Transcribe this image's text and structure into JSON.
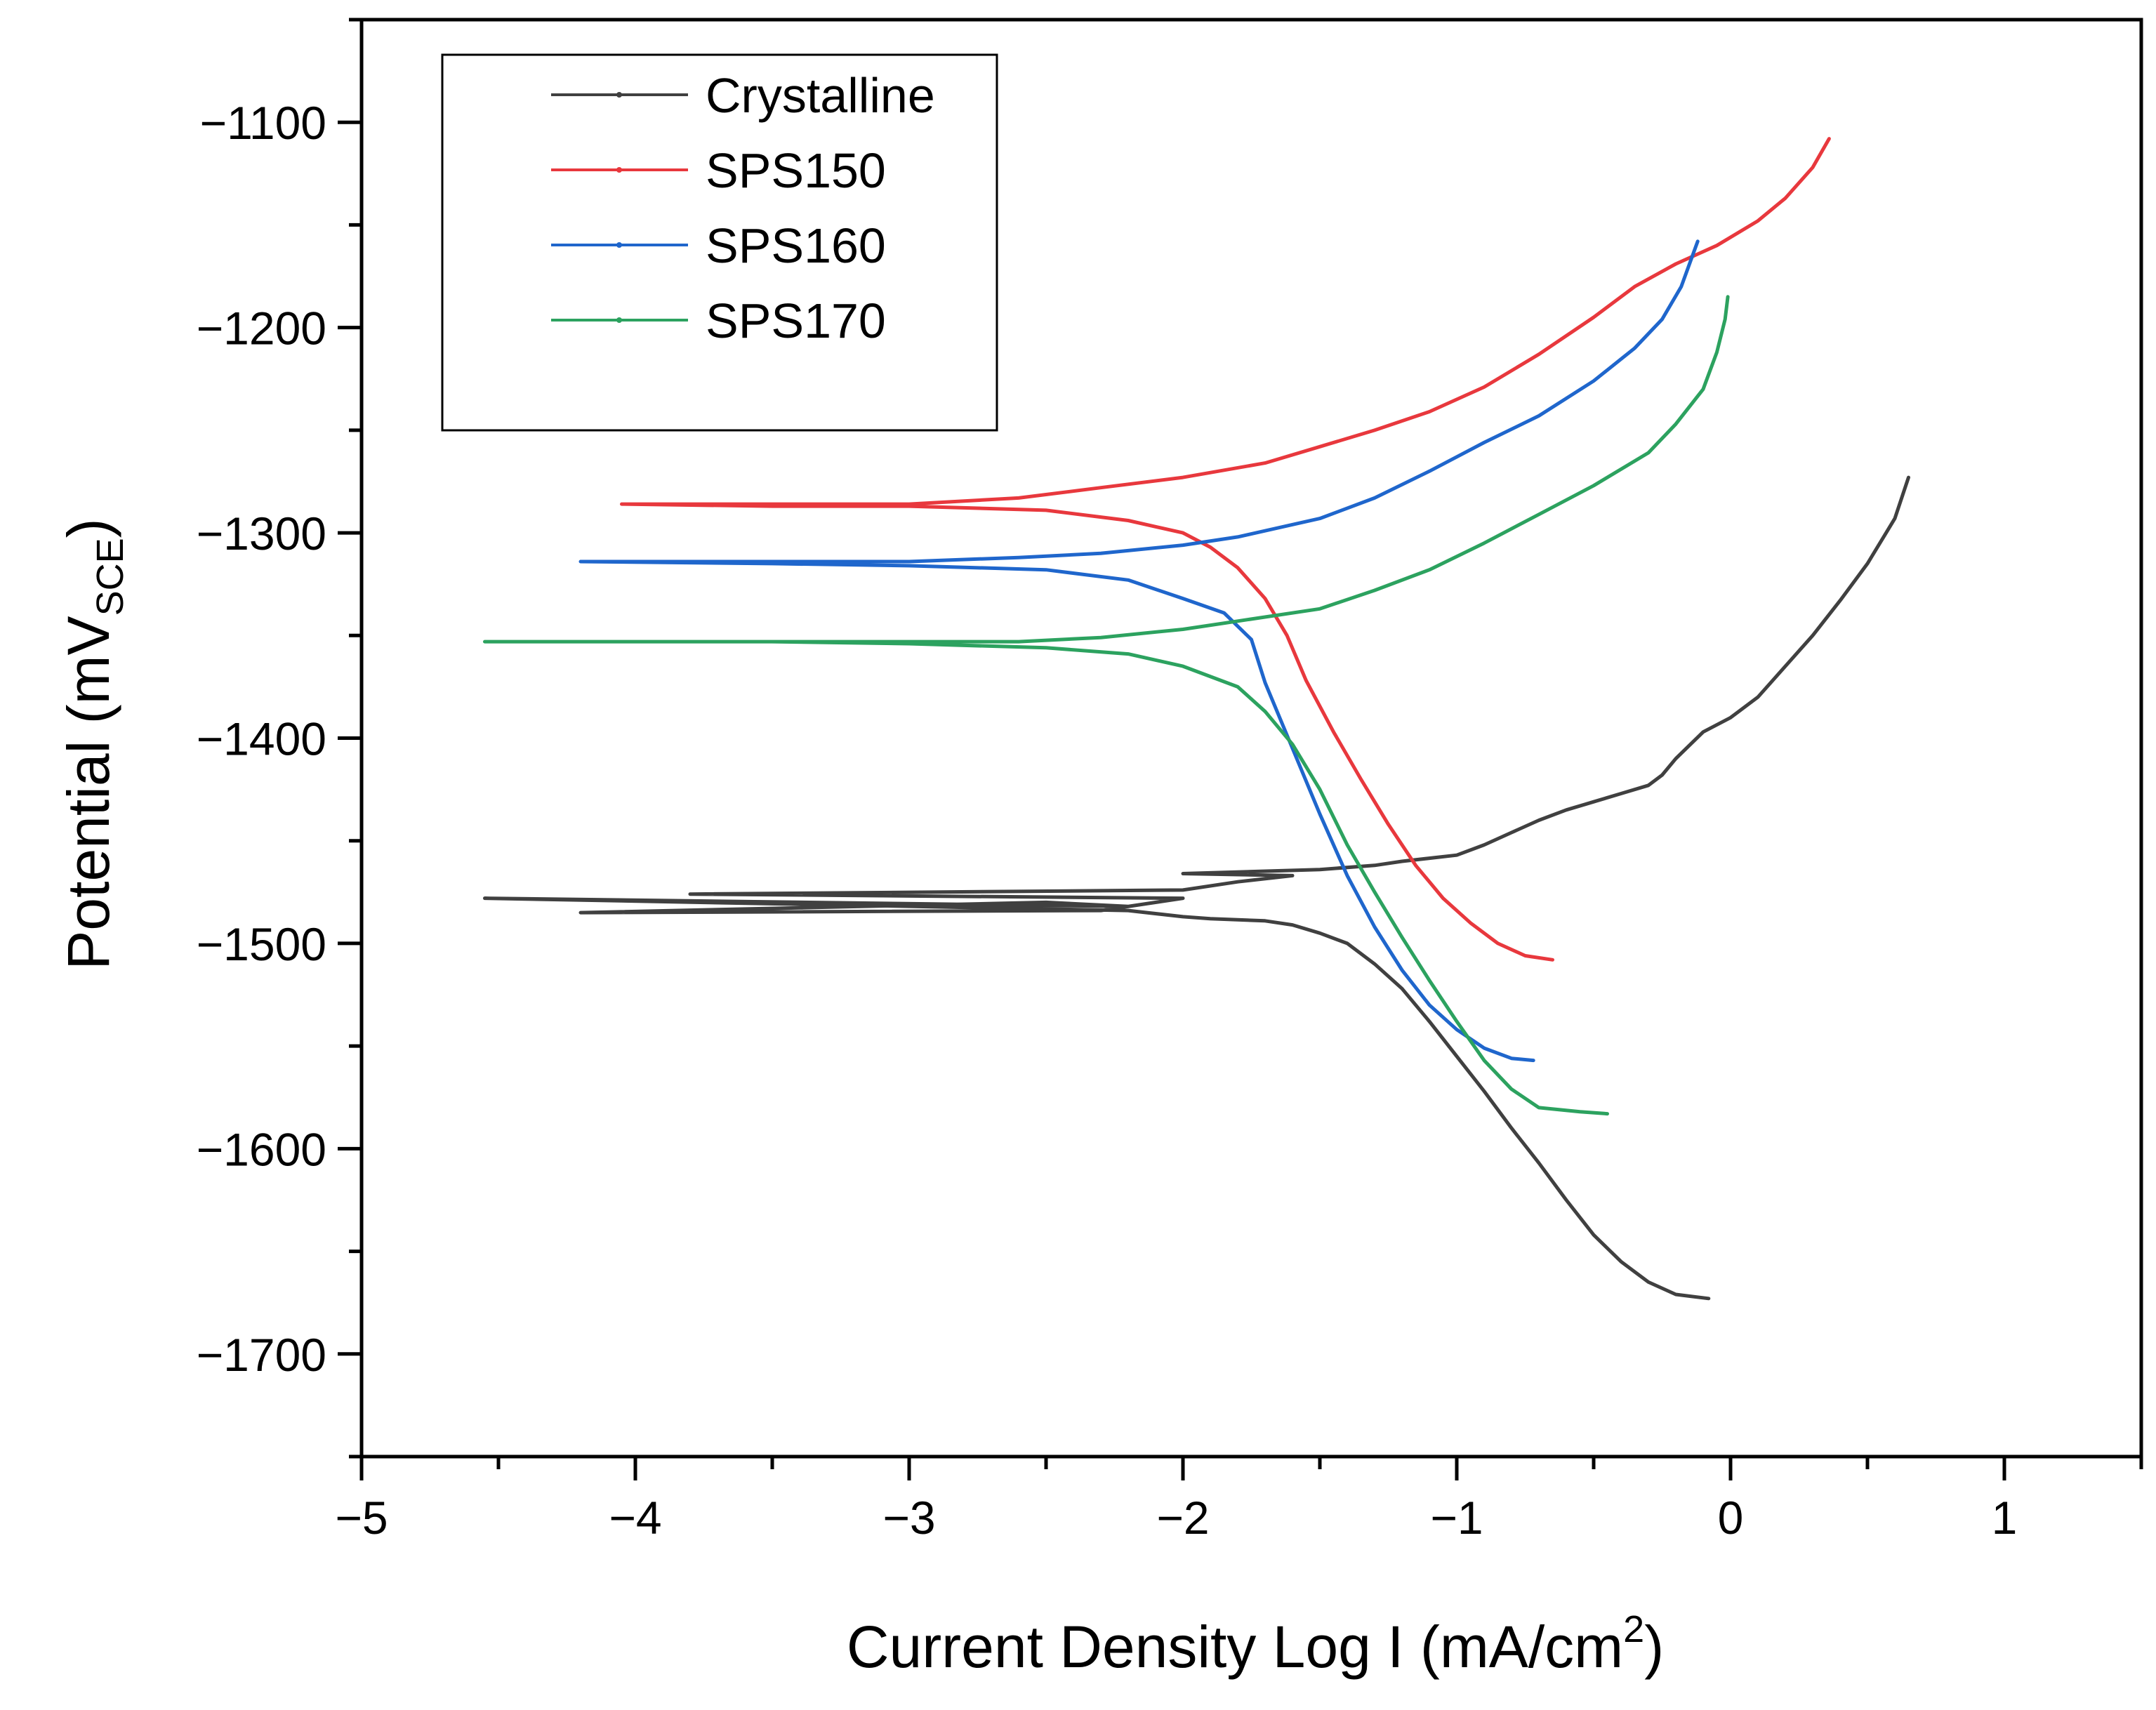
{
  "chart_data": {
    "type": "line",
    "title": "",
    "xlabel_main": "Current Density Log I (mA/cm",
    "xlabel_sup": "2",
    "xlabel_end": ")",
    "ylabel_main": "Potential (mV",
    "ylabel_sub": "SCE",
    "ylabel_end": ")",
    "xlim": [
      -5,
      1.5
    ],
    "ylim": [
      -1750,
      -1050
    ],
    "xticks": [
      -5,
      -4,
      -3,
      -2,
      -1,
      0,
      1
    ],
    "xtick_labels": [
      "−5",
      "−4",
      "−3",
      "−2",
      "−1",
      "0",
      "1"
    ],
    "yticks": [
      -1700,
      -1600,
      -1500,
      -1400,
      -1300,
      -1200,
      -1100
    ],
    "ytick_labels": [
      "−1700",
      "−1600",
      "−1500",
      "−1400",
      "−1300",
      "−1200",
      "−1100"
    ],
    "legend_position": "top-left",
    "series": [
      {
        "name": "Crystalline",
        "color": "#404040",
        "points": [
          [
            -0.08,
            -1673
          ],
          [
            -0.2,
            -1671
          ],
          [
            -0.3,
            -1665
          ],
          [
            -0.4,
            -1655
          ],
          [
            -0.5,
            -1642
          ],
          [
            -0.6,
            -1625
          ],
          [
            -0.7,
            -1607
          ],
          [
            -0.8,
            -1590
          ],
          [
            -0.9,
            -1572
          ],
          [
            -1.0,
            -1555
          ],
          [
            -1.1,
            -1538
          ],
          [
            -1.2,
            -1522
          ],
          [
            -1.3,
            -1510
          ],
          [
            -1.4,
            -1500
          ],
          [
            -1.5,
            -1495
          ],
          [
            -1.6,
            -1491
          ],
          [
            -1.7,
            -1489
          ],
          [
            -1.9,
            -1488
          ],
          [
            -2.0,
            -1487
          ],
          [
            -2.2,
            -1484
          ],
          [
            -4.55,
            -1478
          ],
          [
            -2.2,
            -1482
          ],
          [
            -2.5,
            -1480
          ],
          [
            -4.2,
            -1485
          ],
          [
            -2.3,
            -1484
          ],
          [
            -2.0,
            -1478
          ],
          [
            -3.8,
            -1476
          ],
          [
            -2.0,
            -1474
          ],
          [
            -1.8,
            -1470
          ],
          [
            -1.6,
            -1467
          ],
          [
            -2.0,
            -1466
          ],
          [
            -1.5,
            -1464
          ],
          [
            -1.3,
            -1462
          ],
          [
            -1.2,
            -1460
          ],
          [
            -1.0,
            -1457
          ],
          [
            -0.9,
            -1452
          ],
          [
            -0.8,
            -1446
          ],
          [
            -0.7,
            -1440
          ],
          [
            -0.6,
            -1435
          ],
          [
            -0.5,
            -1431
          ],
          [
            -0.4,
            -1427
          ],
          [
            -0.3,
            -1423
          ],
          [
            -0.25,
            -1418
          ],
          [
            -0.2,
            -1410
          ],
          [
            -0.1,
            -1397
          ],
          [
            0.0,
            -1390
          ],
          [
            0.1,
            -1380
          ],
          [
            0.2,
            -1365
          ],
          [
            0.3,
            -1350
          ],
          [
            0.4,
            -1333
          ],
          [
            0.5,
            -1315
          ],
          [
            0.6,
            -1293
          ],
          [
            0.65,
            -1273
          ]
        ]
      },
      {
        "name": "SPS150",
        "color": "#e8383d",
        "points": [
          [
            -0.65,
            -1508
          ],
          [
            -0.75,
            -1506
          ],
          [
            -0.85,
            -1500
          ],
          [
            -0.95,
            -1490
          ],
          [
            -1.05,
            -1478
          ],
          [
            -1.15,
            -1462
          ],
          [
            -1.25,
            -1442
          ],
          [
            -1.35,
            -1420
          ],
          [
            -1.45,
            -1397
          ],
          [
            -1.55,
            -1372
          ],
          [
            -1.62,
            -1350
          ],
          [
            -1.7,
            -1332
          ],
          [
            -1.8,
            -1317
          ],
          [
            -1.9,
            -1307
          ],
          [
            -2.0,
            -1300
          ],
          [
            -2.2,
            -1294
          ],
          [
            -2.5,
            -1289
          ],
          [
            -3.0,
            -1287
          ],
          [
            -3.5,
            -1287
          ],
          [
            -4.05,
            -1286
          ],
          [
            -3.5,
            -1286
          ],
          [
            -3.0,
            -1286
          ],
          [
            -2.6,
            -1283
          ],
          [
            -2.3,
            -1278
          ],
          [
            -2.0,
            -1273
          ],
          [
            -1.7,
            -1266
          ],
          [
            -1.5,
            -1258
          ],
          [
            -1.3,
            -1250
          ],
          [
            -1.1,
            -1241
          ],
          [
            -0.9,
            -1229
          ],
          [
            -0.7,
            -1213
          ],
          [
            -0.5,
            -1195
          ],
          [
            -0.35,
            -1180
          ],
          [
            -0.2,
            -1169
          ],
          [
            -0.05,
            -1160
          ],
          [
            0.1,
            -1148
          ],
          [
            0.2,
            -1137
          ],
          [
            0.3,
            -1122
          ],
          [
            0.36,
            -1108
          ]
        ]
      },
      {
        "name": "SPS160",
        "color": "#1f66cc",
        "points": [
          [
            -0.72,
            -1557
          ],
          [
            -0.8,
            -1556
          ],
          [
            -0.9,
            -1551
          ],
          [
            -1.0,
            -1542
          ],
          [
            -1.1,
            -1530
          ],
          [
            -1.2,
            -1513
          ],
          [
            -1.3,
            -1492
          ],
          [
            -1.4,
            -1467
          ],
          [
            -1.5,
            -1437
          ],
          [
            -1.6,
            -1405
          ],
          [
            -1.7,
            -1373
          ],
          [
            -1.75,
            -1352
          ],
          [
            -1.85,
            -1339
          ],
          [
            -2.0,
            -1332
          ],
          [
            -2.2,
            -1323
          ],
          [
            -2.5,
            -1318
          ],
          [
            -3.0,
            -1316
          ],
          [
            -3.5,
            -1315
          ],
          [
            -4.2,
            -1314
          ],
          [
            -3.5,
            -1314
          ],
          [
            -3.0,
            -1314
          ],
          [
            -2.6,
            -1312
          ],
          [
            -2.3,
            -1310
          ],
          [
            -2.0,
            -1306
          ],
          [
            -1.8,
            -1302
          ],
          [
            -1.5,
            -1293
          ],
          [
            -1.3,
            -1283
          ],
          [
            -1.1,
            -1270
          ],
          [
            -0.9,
            -1256
          ],
          [
            -0.7,
            -1243
          ],
          [
            -0.5,
            -1226
          ],
          [
            -0.35,
            -1210
          ],
          [
            -0.25,
            -1196
          ],
          [
            -0.18,
            -1180
          ],
          [
            -0.12,
            -1158
          ]
        ]
      },
      {
        "name": "SPS170",
        "color": "#2ca25f",
        "points": [
          [
            -0.45,
            -1583
          ],
          [
            -0.55,
            -1582
          ],
          [
            -0.7,
            -1580
          ],
          [
            -0.8,
            -1571
          ],
          [
            -0.9,
            -1557
          ],
          [
            -1.0,
            -1538
          ],
          [
            -1.1,
            -1518
          ],
          [
            -1.2,
            -1497
          ],
          [
            -1.3,
            -1475
          ],
          [
            -1.4,
            -1452
          ],
          [
            -1.5,
            -1425
          ],
          [
            -1.6,
            -1403
          ],
          [
            -1.7,
            -1387
          ],
          [
            -1.8,
            -1375
          ],
          [
            -2.0,
            -1365
          ],
          [
            -2.2,
            -1359
          ],
          [
            -2.5,
            -1356
          ],
          [
            -3.0,
            -1354
          ],
          [
            -3.5,
            -1353
          ],
          [
            -4.55,
            -1353
          ],
          [
            -3.5,
            -1353
          ],
          [
            -3.0,
            -1353
          ],
          [
            -2.6,
            -1353
          ],
          [
            -2.3,
            -1351
          ],
          [
            -2.0,
            -1347
          ],
          [
            -1.8,
            -1343
          ],
          [
            -1.5,
            -1337
          ],
          [
            -1.3,
            -1328
          ],
          [
            -1.1,
            -1318
          ],
          [
            -0.9,
            -1305
          ],
          [
            -0.7,
            -1291
          ],
          [
            -0.5,
            -1277
          ],
          [
            -0.3,
            -1261
          ],
          [
            -0.2,
            -1247
          ],
          [
            -0.1,
            -1230
          ],
          [
            -0.05,
            -1212
          ],
          [
            -0.02,
            -1196
          ],
          [
            -0.01,
            -1185
          ]
        ]
      }
    ]
  }
}
